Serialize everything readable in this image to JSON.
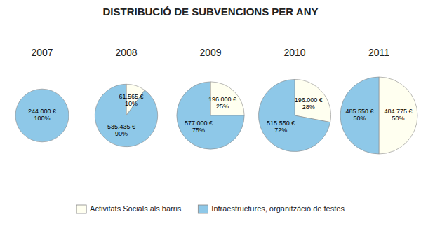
{
  "chart_data": {
    "type": "pie",
    "title": "DISTRIBUCIÓ DE SUBVENCIONS PER ANY",
    "categories": [
      "Activitats Socials als barris",
      "Infraestructures, organitzàció de festes"
    ],
    "colors": [
      "#FFFFF0",
      "#8EC8E8"
    ],
    "legend": "bottom",
    "data_labels": true,
    "series": [
      {
        "name": "2007",
        "size": 0.55,
        "values": [
          0,
          100
        ],
        "value_labels": [
          null,
          "244.000 €\n100%"
        ]
      },
      {
        "name": "2008",
        "size": 0.65,
        "values": [
          10,
          90
        ],
        "value_labels": [
          "61.565 €\n10%",
          "535.435 €\n90%"
        ]
      },
      {
        "name": "2009",
        "size": 0.7,
        "values": [
          25,
          75
        ],
        "value_labels": [
          "196.000 €\n25%",
          "577.000 €\n75%"
        ]
      },
      {
        "name": "2010",
        "size": 0.75,
        "values": [
          28,
          72
        ],
        "value_labels": [
          "196.000 €\n28%",
          "515.550 €\n72%"
        ]
      },
      {
        "name": "2011",
        "size": 0.8,
        "values": [
          50,
          50
        ],
        "value_labels": [
          "484.775 €\n50%",
          "485.550 €\n50%"
        ]
      }
    ]
  }
}
